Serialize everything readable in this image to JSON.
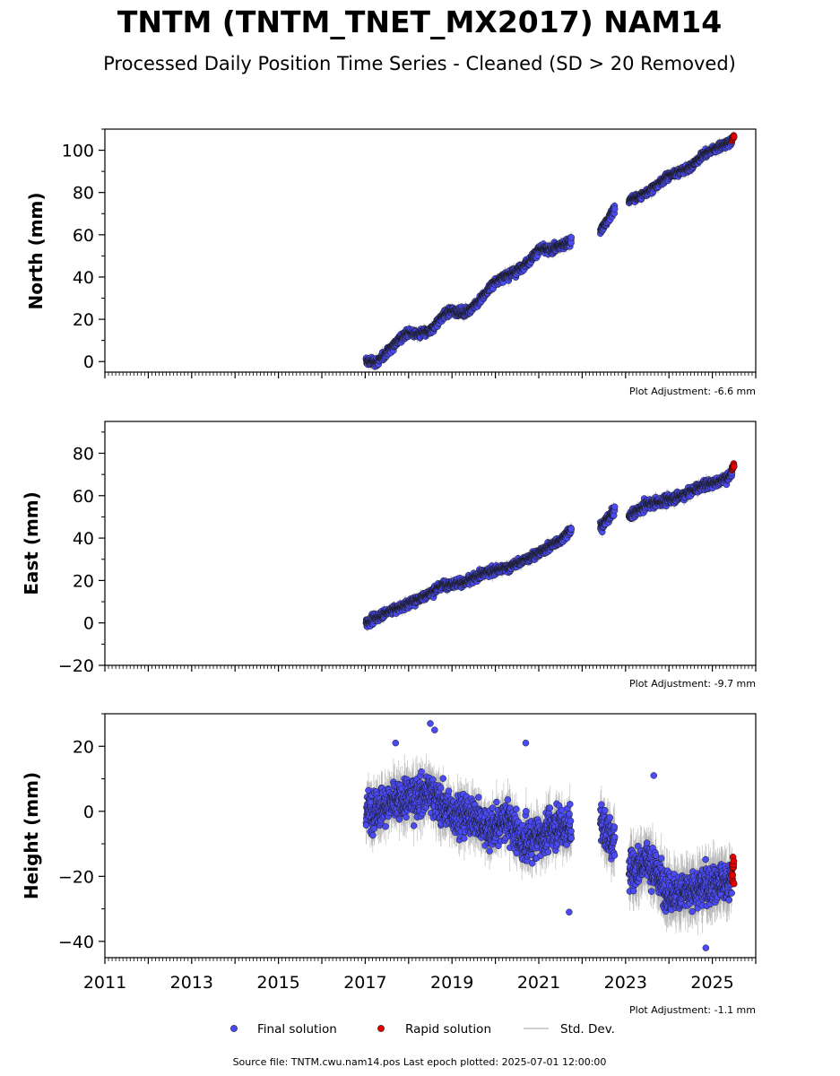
{
  "page": {
    "title": "TNTM (TNTM_TNET_MX2017) NAM14",
    "subtitle": "Processed Daily Position Time Series - Cleaned (SD > 20 Removed)",
    "source": "Source file: TNTM.cwu.nam14.pos  Last epoch plotted: 2025-07-01 12:00:00"
  },
  "legend": {
    "final": "Final solution",
    "rapid": "Rapid solution",
    "std": "Std. Dev."
  },
  "colors": {
    "final": "#4b4bf5",
    "rapid": "#e60000",
    "std": "#b0b0b0",
    "marker_edge": "#1a1a1a"
  },
  "chart_data": [
    {
      "type": "scatter",
      "panel": "north",
      "ylabel": "North (mm)",
      "adjustment": "Plot Adjustment: -6.6 mm",
      "xlim": [
        2011.0,
        2026.0
      ],
      "ylim": [
        -5,
        110
      ],
      "yticks": [
        0,
        20,
        40,
        60,
        80,
        100
      ],
      "ytick_labels": [
        "0",
        "20",
        "40",
        "60",
        "80",
        "100"
      ],
      "segments": [
        {
          "start": 2017.02,
          "end": 2021.75,
          "anchors": [
            [
              2017.02,
              0
            ],
            [
              2017.3,
              0
            ],
            [
              2017.7,
              9
            ],
            [
              2018.0,
              14
            ],
            [
              2018.2,
              13
            ],
            [
              2018.5,
              14
            ],
            [
              2018.8,
              22
            ],
            [
              2019.0,
              24
            ],
            [
              2019.3,
              23
            ],
            [
              2019.6,
              28
            ],
            [
              2020.0,
              38
            ],
            [
              2020.5,
              43
            ],
            [
              2020.8,
              48
            ],
            [
              2021.0,
              53
            ],
            [
              2021.3,
              53
            ],
            [
              2021.75,
              57
            ]
          ],
          "noise": 1.6,
          "err": 2.0
        },
        {
          "start": 2022.42,
          "end": 2022.75,
          "anchors": [
            [
              2022.42,
              62
            ],
            [
              2022.6,
              67
            ],
            [
              2022.75,
              73
            ]
          ],
          "noise": 1.6,
          "err": 2.0
        },
        {
          "start": 2023.08,
          "end": 2025.45,
          "anchors": [
            [
              2023.08,
              76
            ],
            [
              2023.4,
              79
            ],
            [
              2023.7,
              83
            ],
            [
              2024.0,
              88
            ],
            [
              2024.5,
              92
            ],
            [
              2024.8,
              98
            ],
            [
              2025.2,
              102
            ],
            [
              2025.45,
              104
            ]
          ],
          "noise": 1.4,
          "err": 2.0
        }
      ],
      "rapid": {
        "start": 2025.45,
        "end": 2025.5,
        "anchors": [
          [
            2025.45,
            105
          ],
          [
            2025.5,
            107
          ]
        ],
        "noise": 0.9,
        "count": 14
      },
      "outliers": []
    },
    {
      "type": "scatter",
      "panel": "east",
      "ylabel": "East (mm)",
      "adjustment": "Plot Adjustment: -9.7 mm",
      "xlim": [
        2011.0,
        2026.0
      ],
      "ylim": [
        -20,
        95
      ],
      "yticks": [
        -20,
        0,
        20,
        40,
        60,
        80
      ],
      "ytick_labels": [
        "−20",
        "0",
        "20",
        "40",
        "60",
        "80"
      ],
      "segments": [
        {
          "start": 2017.02,
          "end": 2021.75,
          "anchors": [
            [
              2017.02,
              0
            ],
            [
              2017.5,
              5
            ],
            [
              2018.0,
              9
            ],
            [
              2018.5,
              14
            ],
            [
              2018.8,
              18
            ],
            [
              2019.3,
              19
            ],
            [
              2019.8,
              24
            ],
            [
              2020.3,
              26
            ],
            [
              2020.6,
              29
            ],
            [
              2021.0,
              33
            ],
            [
              2021.5,
              39
            ],
            [
              2021.75,
              44
            ]
          ],
          "noise": 1.6,
          "err": 2.0
        },
        {
          "start": 2022.42,
          "end": 2022.75,
          "anchors": [
            [
              2022.42,
              45
            ],
            [
              2022.75,
              53
            ]
          ],
          "noise": 1.8,
          "err": 2.0
        },
        {
          "start": 2023.08,
          "end": 2025.45,
          "anchors": [
            [
              2023.08,
              50
            ],
            [
              2023.5,
              56
            ],
            [
              2023.8,
              57
            ],
            [
              2024.3,
              60
            ],
            [
              2024.8,
              65
            ],
            [
              2025.2,
              67
            ],
            [
              2025.45,
              70
            ]
          ],
          "noise": 1.8,
          "err": 2.0
        }
      ],
      "rapid": {
        "start": 2025.45,
        "end": 2025.5,
        "anchors": [
          [
            2025.45,
            72
          ],
          [
            2025.5,
            75
          ]
        ],
        "noise": 1.2,
        "count": 14
      },
      "outliers": []
    },
    {
      "type": "scatter",
      "panel": "height",
      "ylabel": "Height (mm)",
      "adjustment": "Plot Adjustment: -1.1 mm",
      "xlim": [
        2011.0,
        2026.0
      ],
      "ylim": [
        -45,
        30
      ],
      "yticks": [
        -40,
        -20,
        0,
        20
      ],
      "ytick_labels": [
        "−40",
        "−20",
        "0",
        "20"
      ],
      "xticks": [
        2011,
        2013,
        2015,
        2017,
        2019,
        2021,
        2023,
        2025
      ],
      "xtick_labels": [
        "2011",
        "2013",
        "2015",
        "2017",
        "2019",
        "2021",
        "2023",
        "2025"
      ],
      "segments": [
        {
          "start": 2017.02,
          "end": 2021.75,
          "anchors": [
            [
              2017.02,
              0
            ],
            [
              2017.5,
              2
            ],
            [
              2018.0,
              4
            ],
            [
              2018.5,
              6
            ],
            [
              2018.9,
              0
            ],
            [
              2019.5,
              -2
            ],
            [
              2019.9,
              -6
            ],
            [
              2020.3,
              -2
            ],
            [
              2020.6,
              -10
            ],
            [
              2021.0,
              -8
            ],
            [
              2021.4,
              -5
            ],
            [
              2021.75,
              -5
            ]
          ],
          "noise": 5.0,
          "err": 5.0
        },
        {
          "start": 2022.42,
          "end": 2022.75,
          "anchors": [
            [
              2022.42,
              -4
            ],
            [
              2022.75,
              -10
            ]
          ],
          "noise": 5.0,
          "err": 5.0
        },
        {
          "start": 2023.08,
          "end": 2025.45,
          "anchors": [
            [
              2023.08,
              -18
            ],
            [
              2023.5,
              -15
            ],
            [
              2024.0,
              -25
            ],
            [
              2024.5,
              -25
            ],
            [
              2025.0,
              -22
            ],
            [
              2025.45,
              -22
            ]
          ],
          "noise": 5.0,
          "err": 6.0
        }
      ],
      "rapid": {
        "start": 2025.45,
        "end": 2025.5,
        "anchors": [
          [
            2025.45,
            -20
          ],
          [
            2025.5,
            -17
          ]
        ],
        "noise": 4.0,
        "count": 14
      },
      "outliers": [
        [
          2018.5,
          27
        ],
        [
          2018.6,
          25
        ],
        [
          2020.7,
          21
        ],
        [
          2021.7,
          -31
        ],
        [
          2023.65,
          11
        ],
        [
          2024.85,
          -42
        ],
        [
          2017.7,
          21
        ]
      ]
    }
  ]
}
